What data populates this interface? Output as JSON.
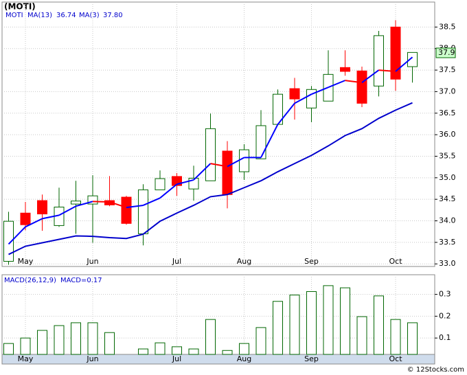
{
  "chart_data": [
    {
      "type": "candlestick",
      "title": "(MOTI)",
      "ticker": "MOTI",
      "categories": [
        null,
        "May",
        null,
        null,
        null,
        "Jun",
        null,
        null,
        null,
        null,
        "Jul",
        null,
        null,
        null,
        "Aug",
        null,
        null,
        null,
        "Sep",
        null,
        null,
        null,
        null,
        "Oct",
        null
      ],
      "open": [
        33.06,
        34.18,
        34.47,
        33.89,
        34.39,
        34.39,
        34.47,
        34.55,
        33.7,
        34.72,
        35.03,
        34.74,
        34.93,
        35.62,
        35.14,
        35.44,
        36.24,
        37.07,
        36.62,
        36.78,
        37.56,
        37.48,
        37.13,
        38.5,
        37.58
      ],
      "high": [
        34.21,
        34.44,
        34.61,
        34.77,
        34.93,
        35.06,
        35.04,
        34.58,
        34.85,
        35.17,
        35.11,
        35.28,
        36.49,
        35.85,
        35.78,
        36.57,
        37.05,
        37.32,
        37.13,
        37.96,
        37.96,
        37.58,
        38.41,
        38.66,
        37.91
      ],
      "low": [
        32.98,
        33.78,
        33.77,
        33.86,
        33.7,
        33.49,
        34.34,
        33.91,
        33.43,
        34.72,
        34.58,
        34.47,
        34.93,
        34.29,
        34.95,
        35.44,
        36.22,
        36.35,
        36.29,
        36.78,
        37.37,
        36.64,
        36.89,
        37.02,
        37.21
      ],
      "close": [
        33.99,
        33.91,
        34.16,
        34.32,
        34.46,
        34.58,
        34.37,
        33.94,
        34.72,
        34.98,
        34.82,
        34.99,
        36.14,
        34.61,
        35.65,
        36.21,
        36.94,
        36.83,
        37.05,
        37.4,
        37.47,
        36.73,
        38.3,
        37.29,
        37.91
      ],
      "up_color": "#006600",
      "down_color": "#ff0000",
      "series": [
        {
          "name": "MA(13)",
          "color": "#0000cc",
          "value_label": "36.74",
          "values": [
            33.22,
            33.41,
            33.49,
            33.57,
            33.65,
            33.64,
            33.61,
            33.59,
            33.69,
            33.99,
            34.18,
            34.36,
            34.56,
            34.61,
            34.77,
            34.93,
            35.14,
            35.33,
            35.52,
            35.74,
            35.98,
            36.14,
            36.38,
            36.57,
            36.74
          ]
        },
        {
          "name": "MA(3)",
          "color": "#0000ff",
          "down_color": "#ff0000",
          "value_label": "37.80",
          "values": [
            33.46,
            33.86,
            34.05,
            34.13,
            34.34,
            34.45,
            34.44,
            34.31,
            34.36,
            34.53,
            34.85,
            34.95,
            35.33,
            35.26,
            35.47,
            35.47,
            36.24,
            36.73,
            36.94,
            37.1,
            37.26,
            37.21,
            37.5,
            37.47,
            37.8
          ]
        }
      ],
      "last_price": 37.9,
      "ylim": [
        32.94,
        39.08
      ],
      "yticks": [
        {
          "value": 33,
          "label": "33.0"
        },
        33.5,
        {
          "value": 34,
          "label": "34.0"
        },
        34.5,
        {
          "value": 35,
          "label": "35.0"
        },
        35.5,
        {
          "value": 36,
          "label": "36.0"
        },
        36.5,
        {
          "value": 37,
          "label": "37.0"
        },
        37.5,
        {
          "value": 38,
          "label": "38.0"
        },
        38.5
      ],
      "grid": true
    },
    {
      "type": "bar",
      "title": "MACD(26,12,9)",
      "current_label": "MACD=0.17",
      "categories": [
        null,
        "May",
        null,
        null,
        null,
        "Jun",
        null,
        null,
        null,
        null,
        "Jul",
        null,
        null,
        null,
        "Aug",
        null,
        null,
        null,
        "Sep",
        null,
        null,
        null,
        null,
        "Oct",
        null
      ],
      "values": [
        0.075,
        0.1,
        0.135,
        0.157,
        0.17,
        0.17,
        0.125,
        null,
        0.05,
        0.078,
        0.06,
        0.05,
        0.185,
        0.043,
        0.075,
        0.148,
        0.268,
        0.297,
        0.313,
        0.34,
        0.33,
        0.198,
        0.293,
        0.185,
        0.17
      ],
      "color": "#006600",
      "ylim": [
        0.025,
        0.39
      ],
      "yticks": [
        0.1,
        0.2,
        0.3
      ],
      "grid": true
    },
    {
      "type": "note",
      "title": "© 12Stocks.com"
    }
  ]
}
